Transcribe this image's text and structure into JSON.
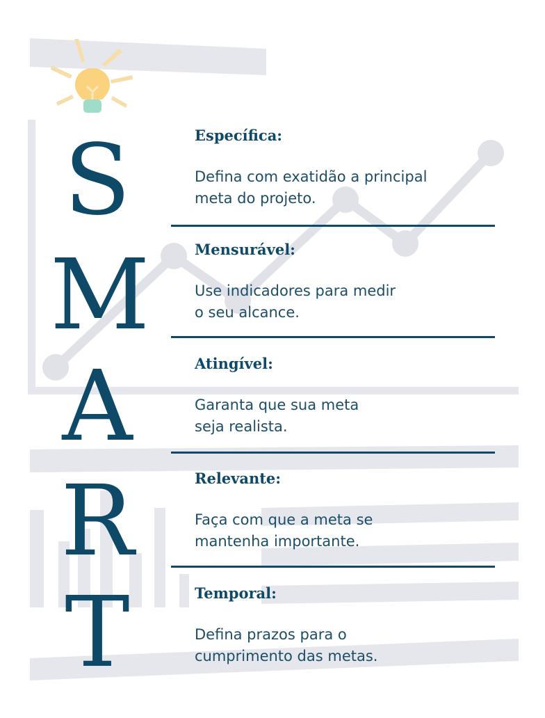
{
  "acronym": {
    "letters": [
      "S",
      "M",
      "A",
      "R",
      "T"
    ]
  },
  "criteria": [
    {
      "title": "Específica:",
      "line1": "Defina com exatidão a principal",
      "line2": "meta do projeto."
    },
    {
      "title": "Mensurável:",
      "line1": "Use indicadores para medir",
      "line2": "o seu alcance."
    },
    {
      "title": "Atingível:",
      "line1": "Garanta que sua meta",
      "line2": "seja realista."
    },
    {
      "title": "Relevante:",
      "line1": "Faça com que a meta se",
      "line2": "mantenha importante."
    },
    {
      "title": "Temporal:",
      "line1": "Defina prazos para o",
      "line2": "cumprimento das metas."
    }
  ],
  "colors": {
    "primary": "#0e4a68",
    "text": "#1d4e68",
    "background_shapes": "#e6e7ec",
    "chart_line": "#e1e2e7",
    "bulb": "#fbd27e",
    "bulb_rays": "#f7ddaa",
    "bulb_base": "#9fdcc9"
  },
  "icons": {
    "idea": "lightbulb-icon",
    "decoration": "line-chart-icon"
  }
}
